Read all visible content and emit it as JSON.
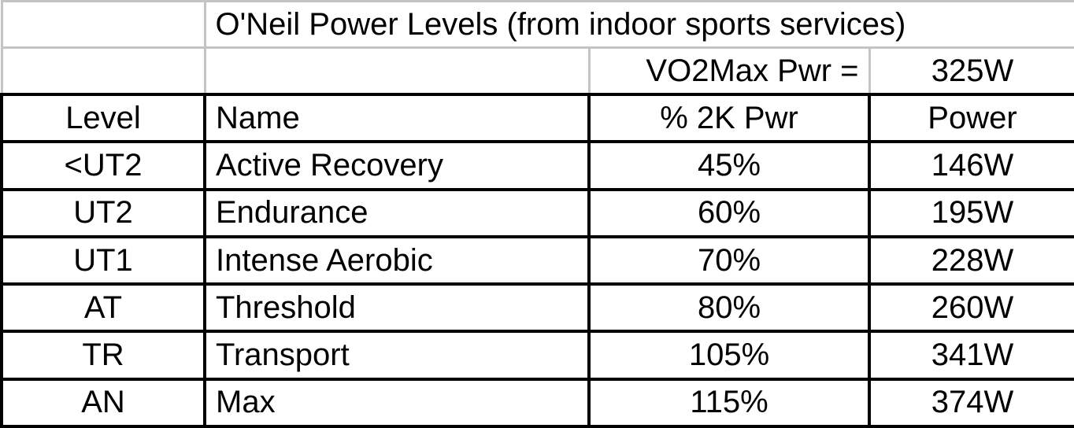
{
  "title": "O'Neil Power Levels (from indoor sports services)",
  "vo2max": {
    "label": "VO2Max Pwr =",
    "value": "325W"
  },
  "table": {
    "headers": {
      "level": "Level",
      "name": "Name",
      "pct": "% 2K Pwr",
      "power": "Power"
    },
    "rows": [
      {
        "level": "<UT2",
        "name": "Active Recovery",
        "pct": "45%",
        "power": "146W"
      },
      {
        "level": "UT2",
        "name": "Endurance",
        "pct": "60%",
        "power": "195W"
      },
      {
        "level": "UT1",
        "name": "Intense Aerobic",
        "pct": "70%",
        "power": "228W"
      },
      {
        "level": "AT",
        "name": "Threshold",
        "pct": "80%",
        "power": "260W"
      },
      {
        "level": "TR",
        "name": "Transport",
        "pct": "105%",
        "power": "341W"
      },
      {
        "level": "AN",
        "name": "Max",
        "pct": "115%",
        "power": "374W"
      }
    ]
  },
  "chart_data": {
    "type": "table",
    "title": "O'Neil Power Levels (from indoor sports services)",
    "vo2max_pwr": "325W",
    "columns": [
      "Level",
      "Name",
      "% 2K Pwr",
      "Power"
    ],
    "rows": [
      [
        "<UT2",
        "Active Recovery",
        "45%",
        "146W"
      ],
      [
        "UT2",
        "Endurance",
        "60%",
        "195W"
      ],
      [
        "UT1",
        "Intense Aerobic",
        "70%",
        "228W"
      ],
      [
        "AT",
        "Threshold",
        "80%",
        "260W"
      ],
      [
        "TR",
        "Transport",
        "105%",
        "341W"
      ],
      [
        "AN",
        "Max",
        "115%",
        "374W"
      ]
    ]
  },
  "colors": {
    "grid_gray": "#C4C4C4",
    "grid_black": "#000000",
    "background": "#FFFFFF",
    "text": "#000000"
  }
}
